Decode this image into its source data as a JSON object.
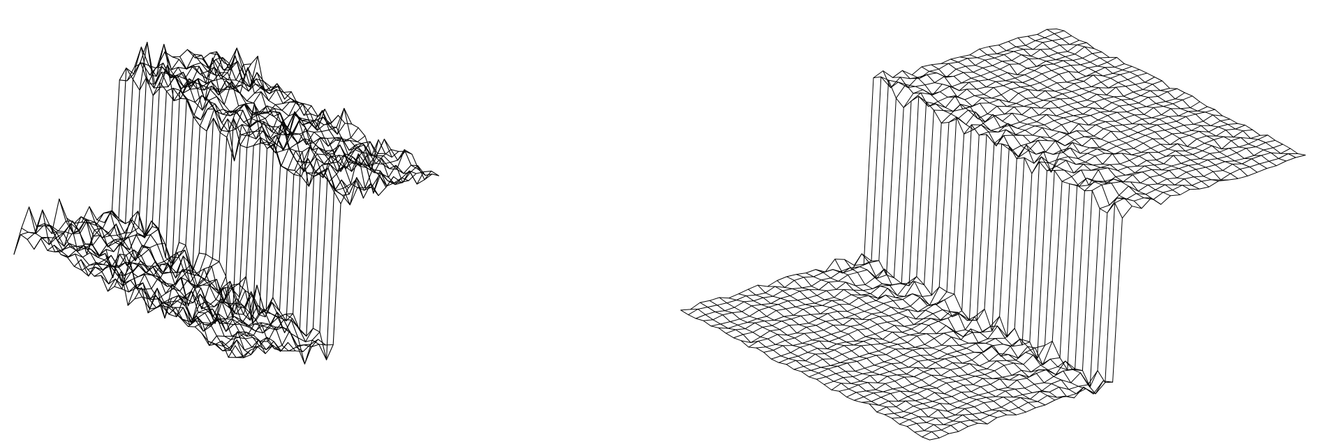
{
  "figure": {
    "panels": [
      {
        "id": "noisy-step-surface",
        "description_type": "wireframe-surface",
        "noise_level": "high",
        "step": true
      },
      {
        "id": "smoothed-step-surface",
        "description_type": "wireframe-surface",
        "noise_level": "low",
        "step": true
      }
    ],
    "colors": {
      "background": "#ffffff",
      "line": "#000000"
    }
  }
}
